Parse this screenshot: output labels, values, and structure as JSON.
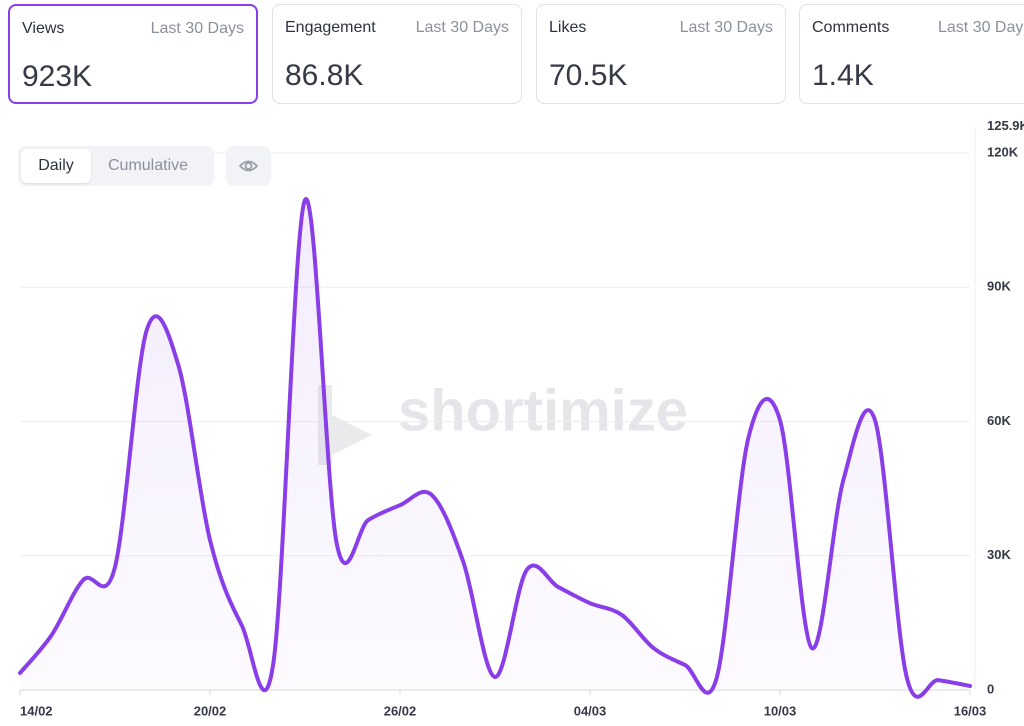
{
  "cards": [
    {
      "title": "Views",
      "period": "Last 30 Days",
      "value": "923K"
    },
    {
      "title": "Engagement",
      "period": "Last 30 Days",
      "value": "86.8K"
    },
    {
      "title": "Likes",
      "period": "Last 30 Days",
      "value": "70.5K"
    },
    {
      "title": "Comments",
      "period": "Last 30 Days",
      "value": "1.4K"
    }
  ],
  "controls": {
    "daily": "Daily",
    "cumulative": "Cumulative"
  },
  "watermark": "shortimize",
  "chart_data": {
    "type": "line",
    "categories": [
      "14/02",
      null,
      null,
      null,
      null,
      null,
      "20/02",
      null,
      null,
      null,
      null,
      null,
      "26/02",
      null,
      null,
      null,
      null,
      null,
      "04/03",
      null,
      null,
      null,
      null,
      null,
      "10/03",
      null,
      null,
      null,
      null,
      null,
      "16/03"
    ],
    "series": [
      {
        "color": "#8a3ee8",
        "values": [
          3800,
          12300,
          24600,
          27500,
          80400,
          72600,
          33500,
          14500,
          6000,
          109500,
          32800,
          38000,
          41300,
          43600,
          28600,
          2900,
          26800,
          23000,
          19400,
          16800,
          9400,
          5600,
          2700,
          56300,
          60300,
          9400,
          46900,
          60300,
          2900,
          2200,
          900
        ]
      }
    ],
    "ylim": [
      0,
      125900
    ],
    "yticks": [
      0,
      {
        "value": 30000,
        "label": "30K"
      },
      {
        "value": 60000,
        "label": "60K"
      },
      {
        "value": 90000,
        "label": "90K"
      },
      {
        "value": 120000,
        "label": "120K"
      },
      {
        "value": 125900,
        "label": "125.9K"
      }
    ],
    "grid": true
  }
}
